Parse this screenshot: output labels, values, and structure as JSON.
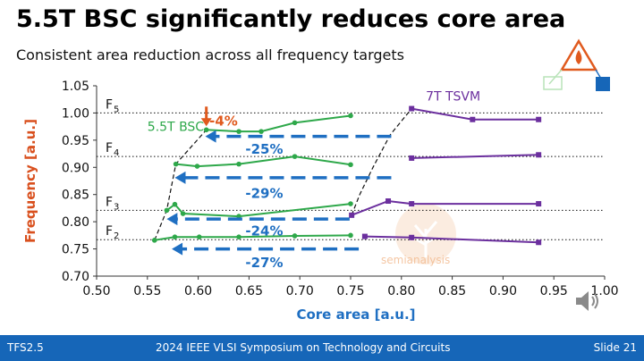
{
  "slide": {
    "title": "5.5T BSC significantly reduces core area",
    "subtitle": "Consistent area reduction across all frequency targets"
  },
  "footer": {
    "left": "TFS2.5",
    "center": "2024 IEEE VLSI Symposium on Technology and Circuits",
    "right": "Slide 21"
  },
  "watermark": "semianalysis",
  "colors": {
    "bsc": "#2ea84a",
    "tsvm": "#6b2f9e",
    "arrow": "#1f6fc2",
    "ylabel": "#d9501e",
    "xlabel": "#1f6fc2",
    "highlight": "#e05a1e",
    "footer": "#1666b8"
  },
  "icons": [
    "triangle-cell-logo-icon",
    "speaker-icon",
    "watermark-icon"
  ],
  "chart_data": {
    "type": "line",
    "xlabel": "Core area [a.u.]",
    "ylabel": "Frequency [a.u.]",
    "xlim": [
      0.5,
      1.0
    ],
    "ylim": [
      0.7,
      1.05
    ],
    "xticks": [
      "0.50",
      "0.55",
      "0.60",
      "0.65",
      "0.70",
      "0.75",
      "0.80",
      "0.85",
      "0.90",
      "0.95",
      "1.00"
    ],
    "yticks": [
      "0.70",
      "0.75",
      "0.80",
      "0.85",
      "0.90",
      "0.95",
      "1.00",
      "1.05"
    ],
    "grid": false,
    "series": [
      {
        "name": "5.5T BSC",
        "group": "bsc",
        "points": [
          [
            0.557,
            0.766
          ],
          [
            0.577,
            0.772
          ],
          [
            0.601,
            0.772
          ],
          [
            0.64,
            0.772
          ],
          [
            0.695,
            0.774
          ],
          [
            0.75,
            0.775
          ]
        ]
      },
      {
        "group": "bsc",
        "points": [
          [
            0.569,
            0.821
          ],
          [
            0.577,
            0.832
          ],
          [
            0.585,
            0.815
          ],
          [
            0.64,
            0.81
          ],
          [
            0.75,
            0.833
          ]
        ]
      },
      {
        "group": "bsc",
        "points": [
          [
            0.578,
            0.906
          ],
          [
            0.599,
            0.902
          ],
          [
            0.64,
            0.906
          ],
          [
            0.695,
            0.92
          ],
          [
            0.75,
            0.905
          ]
        ]
      },
      {
        "group": "bsc",
        "points": [
          [
            0.608,
            0.969
          ],
          [
            0.64,
            0.966
          ],
          [
            0.662,
            0.966
          ],
          [
            0.695,
            0.982
          ],
          [
            0.75,
            0.995
          ]
        ]
      },
      {
        "name": "7T TSVM",
        "group": "tsvm",
        "points": [
          [
            0.751,
            0.812
          ],
          [
            0.787,
            0.838
          ],
          [
            0.81,
            0.833
          ],
          [
            0.935,
            0.833
          ]
        ]
      },
      {
        "group": "tsvm",
        "points": [
          [
            0.764,
            0.773
          ],
          [
            0.81,
            0.771
          ],
          [
            0.935,
            0.762
          ]
        ]
      },
      {
        "group": "tsvm",
        "points": [
          [
            0.81,
            0.917
          ],
          [
            0.935,
            0.923
          ]
        ]
      },
      {
        "group": "tsvm",
        "points": [
          [
            0.81,
            1.008
          ],
          [
            0.87,
            0.988
          ],
          [
            0.935,
            0.988
          ]
        ]
      }
    ],
    "frontier_bsc": [
      [
        0.557,
        0.766
      ],
      [
        0.569,
        0.821
      ],
      [
        0.578,
        0.906
      ],
      [
        0.608,
        0.969
      ]
    ],
    "frontier_tsvm": [
      [
        0.751,
        0.812
      ],
      [
        0.759,
        0.85
      ],
      [
        0.772,
        0.9
      ],
      [
        0.789,
        0.96
      ],
      [
        0.81,
        1.008
      ]
    ],
    "frequency_targets": [
      {
        "label": "F",
        "sub": "5",
        "y": 1.0
      },
      {
        "label": "F",
        "sub": "4",
        "y": 0.92
      },
      {
        "label": "F",
        "sub": "3",
        "y": 0.821
      },
      {
        "label": "F",
        "sub": "2",
        "y": 0.767
      }
    ],
    "reductions": [
      {
        "label": "-25%",
        "x_from": 0.79,
        "x_to": 0.607,
        "y": 0.957,
        "label_x": 0.665,
        "label_y": 0.933
      },
      {
        "label": "-29%",
        "x_from": 0.79,
        "x_to": 0.577,
        "y": 0.881,
        "label_x": 0.665,
        "label_y": 0.852
      },
      {
        "label": "-24%",
        "x_from": 0.749,
        "x_to": 0.569,
        "y": 0.805,
        "label_x": 0.665,
        "label_y": 0.783
      },
      {
        "label": "-27%",
        "x_from": 0.758,
        "x_to": 0.574,
        "y": 0.75,
        "label_x": 0.665,
        "label_y": 0.725
      }
    ],
    "highlight": {
      "label": "-4%",
      "x": 0.608,
      "y": 0.969,
      "label_x": 0.611,
      "label_y": 0.985
    },
    "series_labels": [
      {
        "text": "5.5T BSC",
        "group": "bsc",
        "x": 0.55,
        "y": 0.967
      },
      {
        "text": "7T TSVM",
        "group": "tsvm",
        "x": 0.824,
        "y": 1.023
      }
    ]
  }
}
